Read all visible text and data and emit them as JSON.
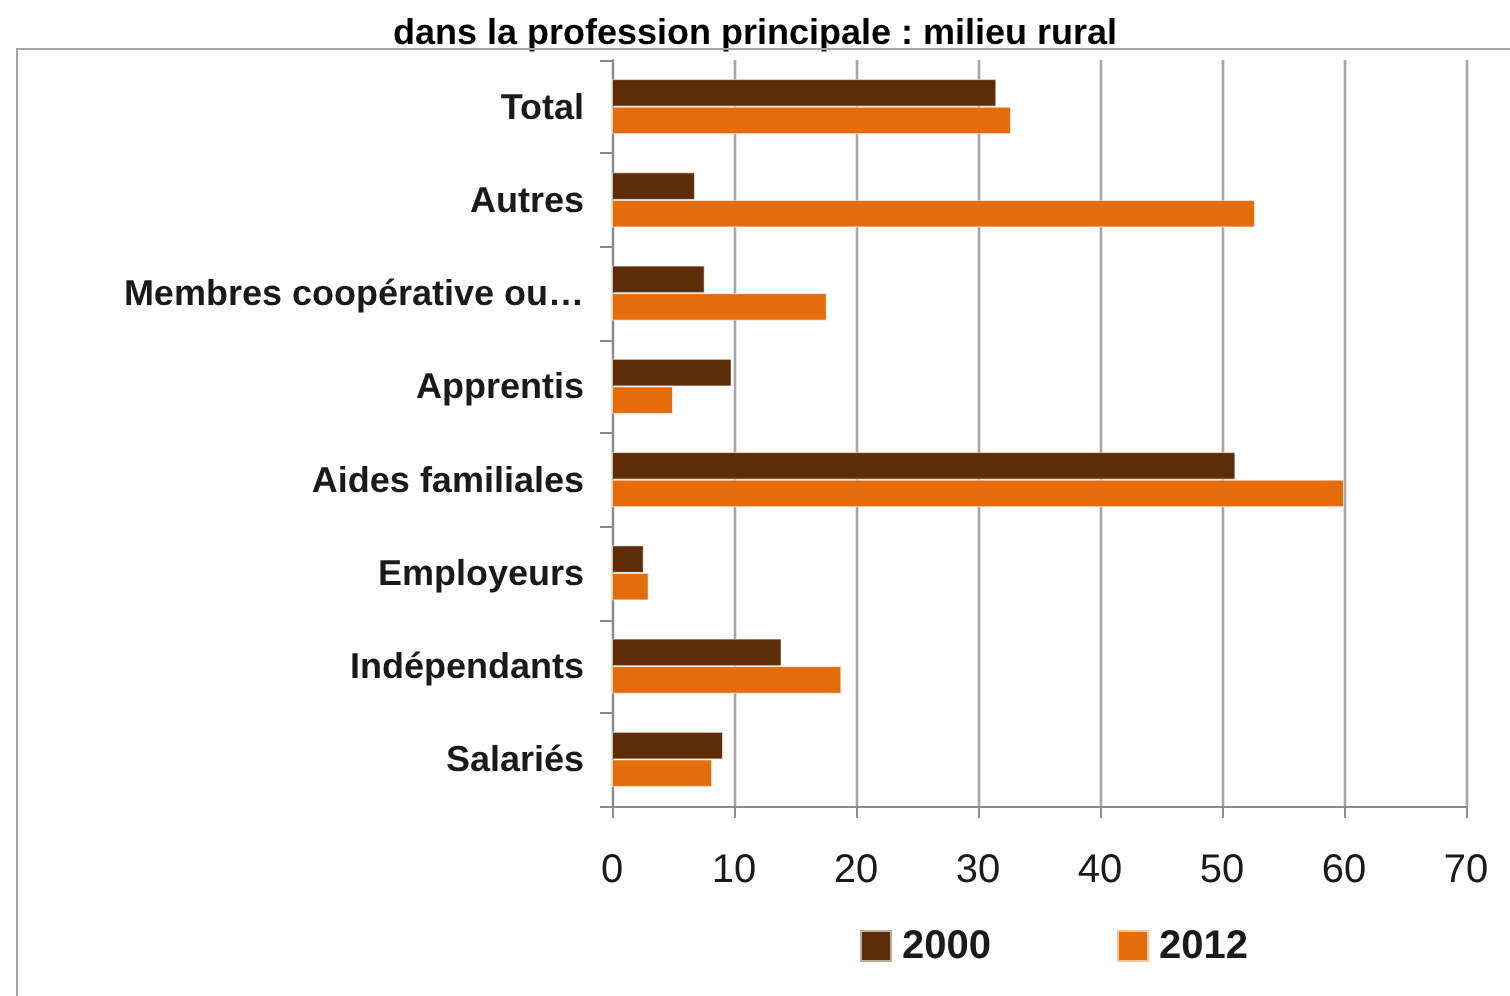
{
  "chart_data": {
    "type": "bar",
    "orientation": "horizontal",
    "title": "dans la profession principale : milieu rural",
    "categories": [
      "Total",
      "Autres",
      "Membres coopérative ou…",
      "Apprentis",
      "Aides familiales",
      "Employeurs",
      "Indépendants",
      "Salariés"
    ],
    "series": [
      {
        "name": "2000",
        "color": "#5c2d06",
        "values": [
          31.5,
          6.8,
          7.6,
          9.8,
          51.1,
          2.6,
          13.9,
          9.1
        ]
      },
      {
        "name": "2012",
        "color": "#e46c0a",
        "values": [
          32.7,
          52.7,
          17.6,
          5.0,
          60,
          3.0,
          18.8,
          8.2
        ]
      }
    ],
    "xlim": [
      0,
      70
    ],
    "xticks": [
      0,
      10,
      20,
      30,
      40,
      50,
      60,
      70
    ],
    "grid": "x",
    "legend": "bottom"
  }
}
